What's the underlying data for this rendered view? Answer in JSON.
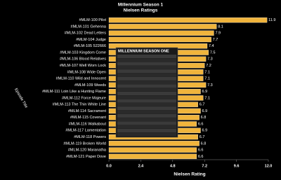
{
  "chart_data": {
    "type": "bar",
    "orientation": "horizontal",
    "title": "Millennium Season 1",
    "subtitle": "Nielsen Ratings",
    "x_label": "Nielsen Rating",
    "y_label": "Episode Title",
    "categories": [
      "#MLM-100 Pilot",
      "#MLM-101 Gehenna",
      "#MLM-102 Dead Letters",
      "#MLM-104 Judge",
      "#MLM-105 522666",
      "#MLM-103 Kingdom Come",
      "#MLM-106 Blood Relatives",
      "#MLM-107 Well Worn Lock",
      "#MLM-108 Wide Open",
      "#MLM-110 Wild and Innocent",
      "#MLM-109 Weeds",
      "#MLM-111 Loin Like a Hunting Flame",
      "#MLM-112 Force Majeure",
      "#MLM-113 The Thin White Line",
      "#MLM-114 Sacrament",
      "#MLM-115 Covenant",
      "#MLM-116 Walkabout",
      "#MLM-117 Lamentation",
      "#MLM-118 Powers",
      "#MLM-119 Broken World",
      "#MLM-120 Maranatha",
      "#MLM-121 Paper Dove"
    ],
    "values": [
      11.9,
      8.1,
      7.9,
      7.7,
      7.4,
      7.5,
      7.3,
      7.2,
      7.1,
      7.1,
      7.3,
      6.9,
      7.1,
      6.7,
      6.9,
      6.8,
      6.6,
      6.9,
      6.7,
      6.8,
      6.6,
      6.6
    ],
    "color": "#f0b43c",
    "xlim": [
      0,
      12
    ],
    "xticks": [
      {
        "value": 0,
        "label": "0.0"
      },
      2.4,
      4.8,
      7.2,
      9.6,
      {
        "value": 12,
        "label": "12.0"
      }
    ],
    "grid": false
  },
  "overlay": {
    "title": "MILLENNIUM SEASON ONE"
  }
}
